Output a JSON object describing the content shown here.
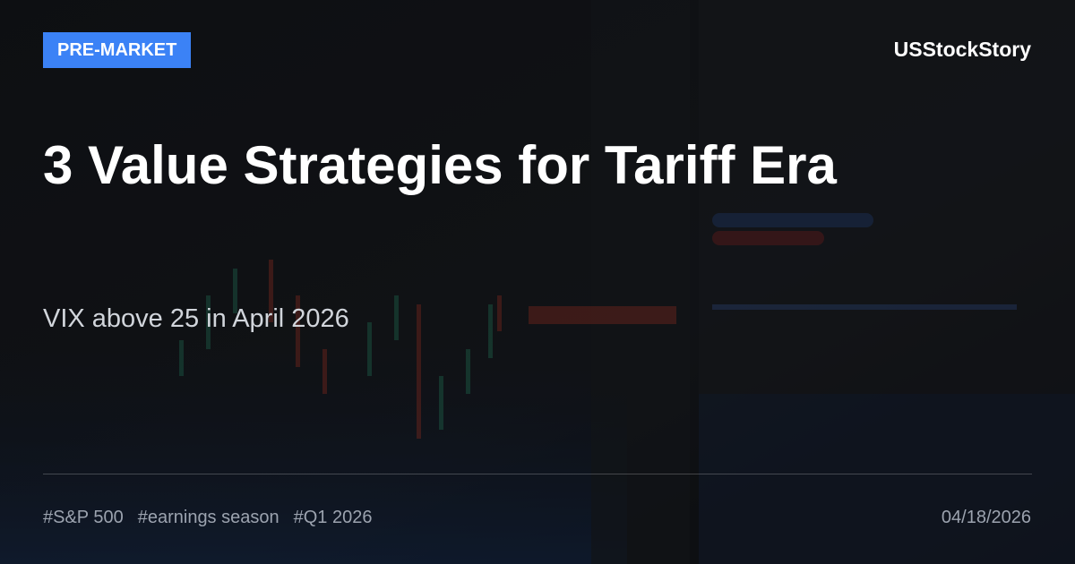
{
  "badge": "PRE-MARKET",
  "brand": "USStockStory",
  "title": "3 Value Strategies for Tariff Era",
  "subtitle": "VIX above 25 in April 2026",
  "tags": [
    "#S&P 500",
    "#earnings season",
    "#Q1 2026"
  ],
  "date": "04/18/2026"
}
